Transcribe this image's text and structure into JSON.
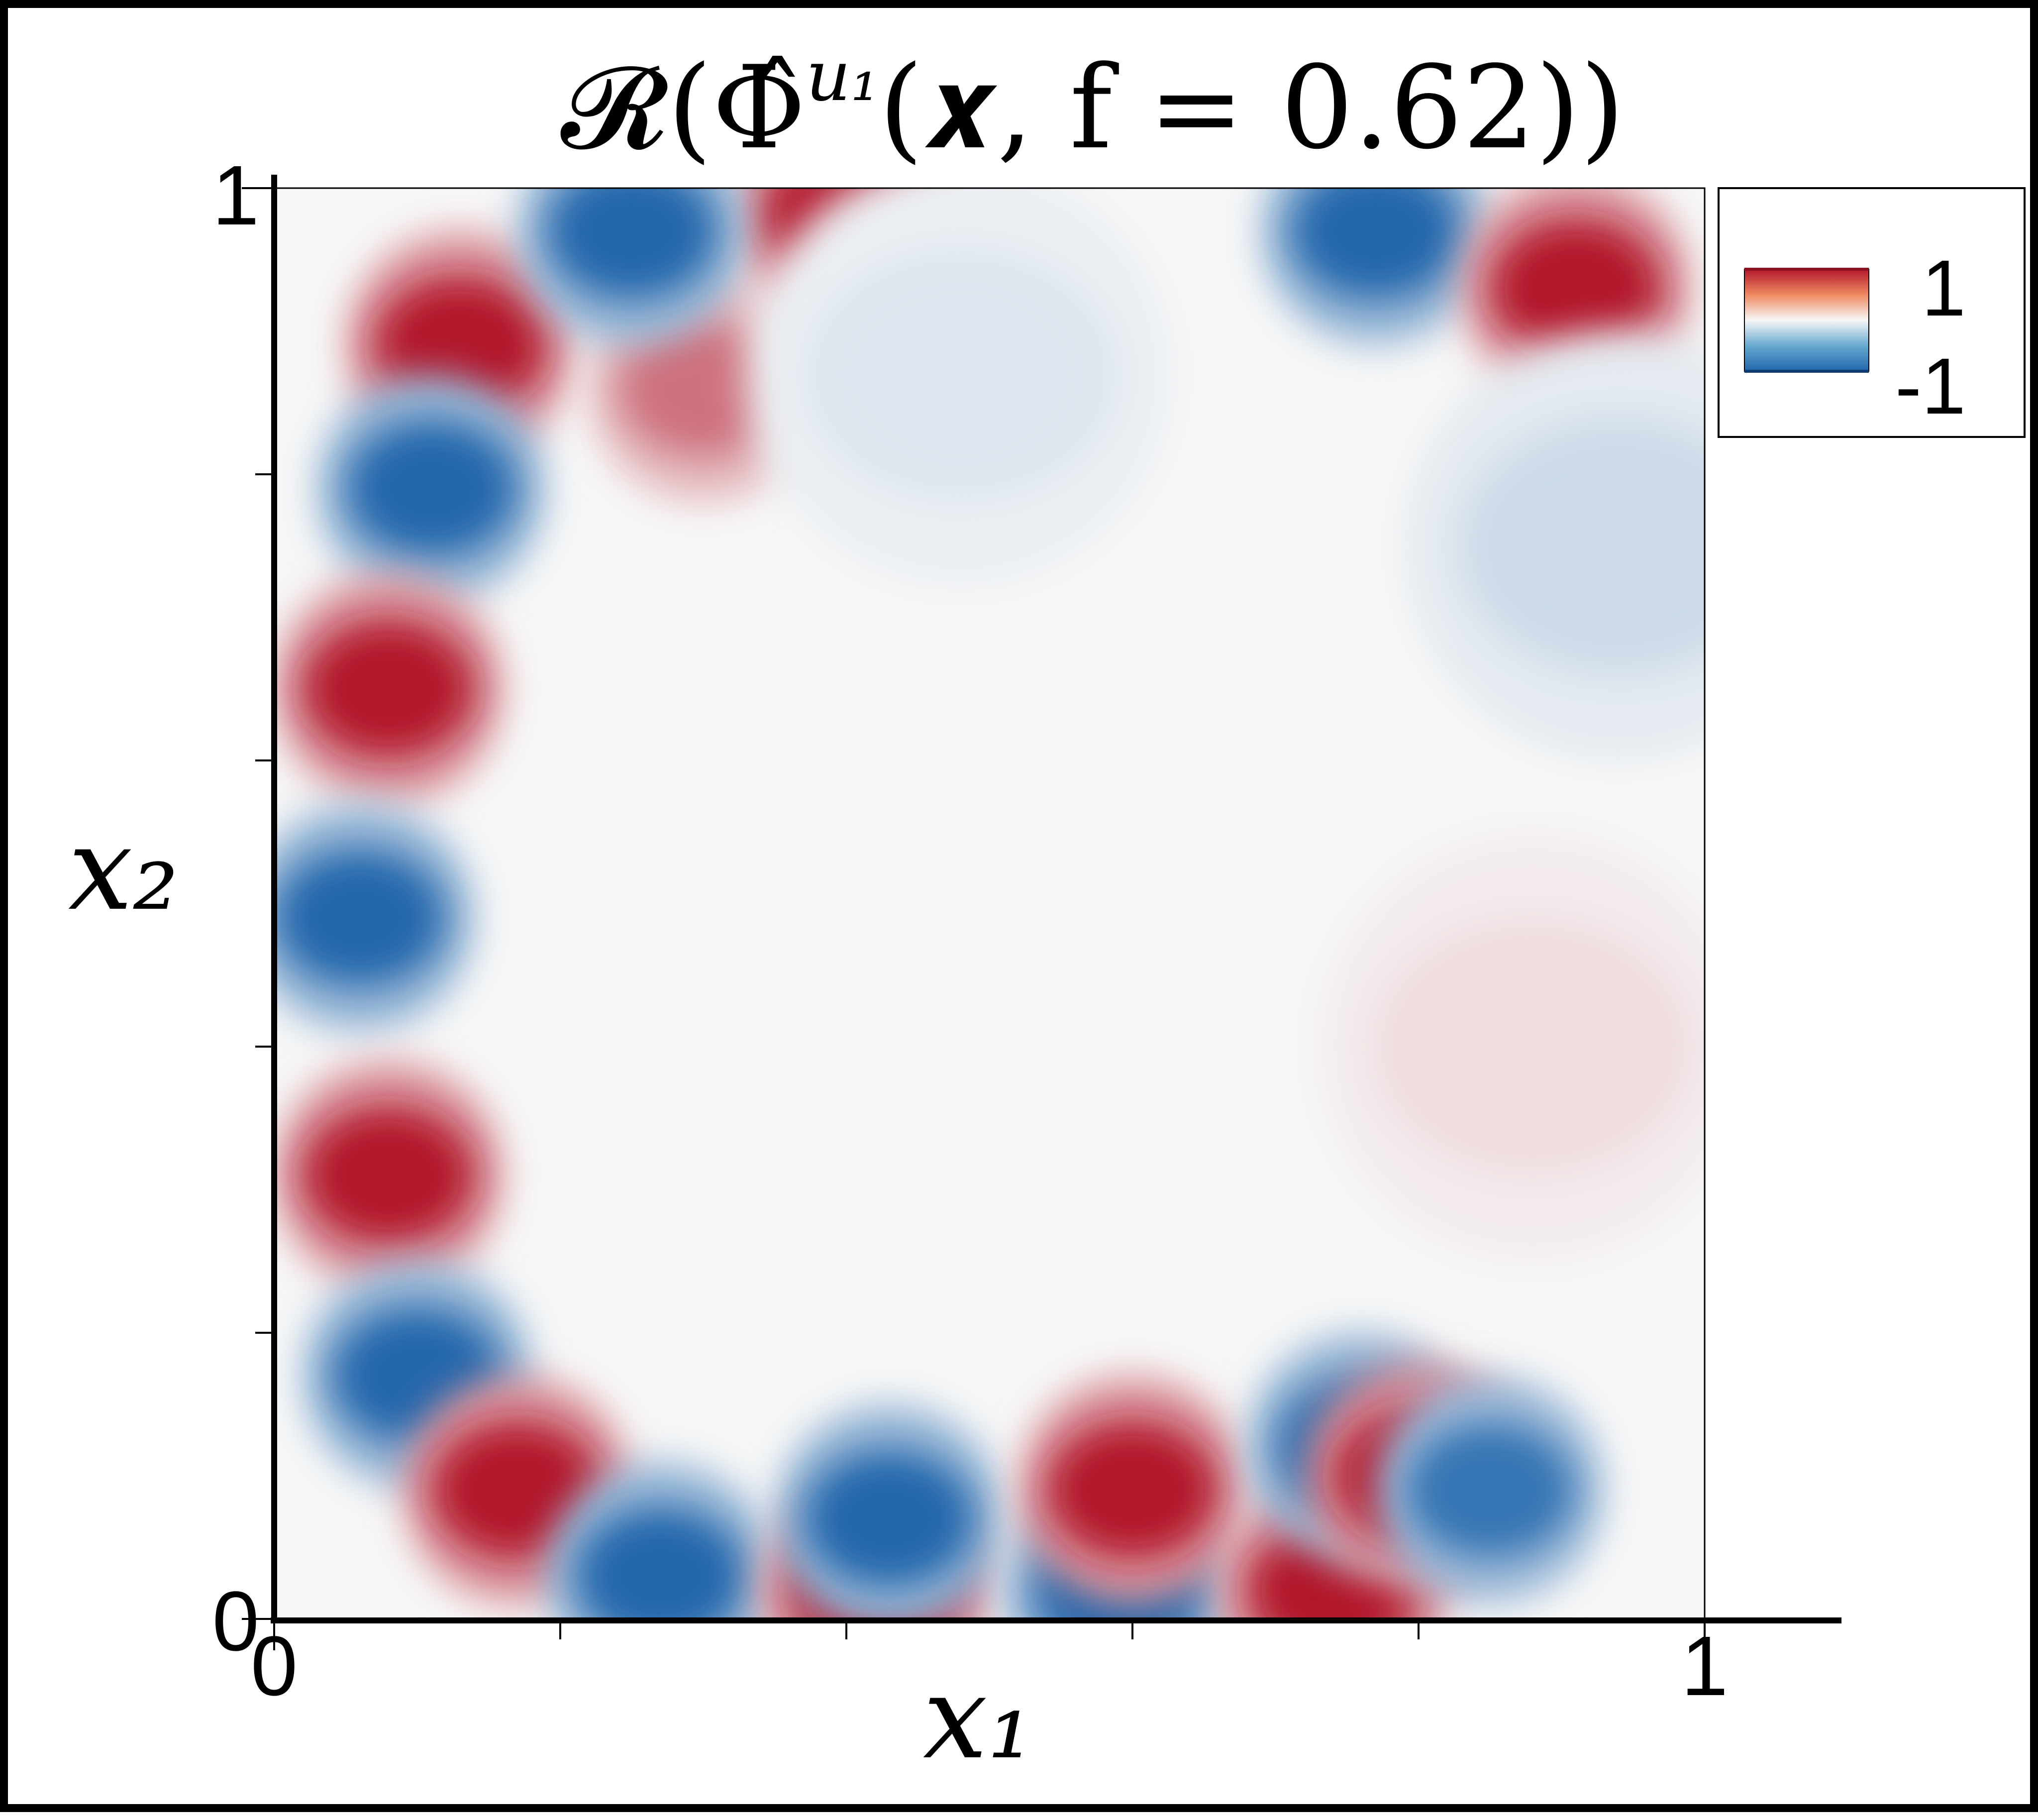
{
  "chart_data": {
    "type": "heatmap",
    "title": "𝓡(Φ̂",
    "title_superscript": "u₁",
    "title_tail": "(𝒙, f = 0.62))",
    "xlabel": "x₁",
    "ylabel": "x₂",
    "xlim": [
      0,
      1
    ],
    "ylim": [
      0,
      1
    ],
    "x_tick_labels": [
      "0",
      "1"
    ],
    "y_tick_labels": [
      "0",
      "1"
    ],
    "minor_ticks": [
      0.2,
      0.4,
      0.6,
      0.8
    ],
    "grid": false,
    "colormap": "RdBu_r",
    "color_range": [
      -1,
      1
    ],
    "colors": {
      "max": "#b2182b",
      "mid": "#f7f7f7",
      "min": "#2166ac"
    },
    "legend": {
      "position": "top-right",
      "max_label": "1",
      "min_label": "-1"
    },
    "features": [
      {
        "x": 0.13,
        "y": 0.89,
        "value": 1.0
      },
      {
        "x": 0.3,
        "y": 0.86,
        "value": 0.6
      },
      {
        "x": 0.11,
        "y": 0.79,
        "value": -1.0
      },
      {
        "x": 0.08,
        "y": 0.65,
        "value": 1.0
      },
      {
        "x": 0.06,
        "y": 0.49,
        "value": -1.0
      },
      {
        "x": 0.08,
        "y": 0.31,
        "value": 1.0
      },
      {
        "x": 0.1,
        "y": 0.17,
        "value": -1.0
      },
      {
        "x": 0.17,
        "y": 0.09,
        "value": 1.0
      },
      {
        "x": 0.27,
        "y": 0.03,
        "value": -1.0
      },
      {
        "x": 0.42,
        "y": 0.02,
        "value": 1.0
      },
      {
        "x": 0.43,
        "y": 0.07,
        "value": -1.0
      },
      {
        "x": 0.59,
        "y": 0.02,
        "value": -1.0
      },
      {
        "x": 0.6,
        "y": 0.09,
        "value": 1.0
      },
      {
        "x": 0.74,
        "y": 0.02,
        "value": 1.0
      },
      {
        "x": 0.76,
        "y": 0.12,
        "value": -1.0
      },
      {
        "x": 0.8,
        "y": 0.1,
        "value": 1.0
      },
      {
        "x": 0.85,
        "y": 0.09,
        "value": -0.9
      },
      {
        "x": 0.4,
        "y": 0.98,
        "value": 1.0
      },
      {
        "x": 0.25,
        "y": 0.97,
        "value": -1.0
      },
      {
        "x": 0.77,
        "y": 0.97,
        "value": -1.0
      },
      {
        "x": 0.91,
        "y": 0.93,
        "value": 1.0
      },
      {
        "x": 0.94,
        "y": 0.75,
        "value": -0.2
      },
      {
        "x": 0.88,
        "y": 0.4,
        "value": 0.12
      },
      {
        "x": 0.48,
        "y": 0.87,
        "value": -0.12
      }
    ]
  }
}
